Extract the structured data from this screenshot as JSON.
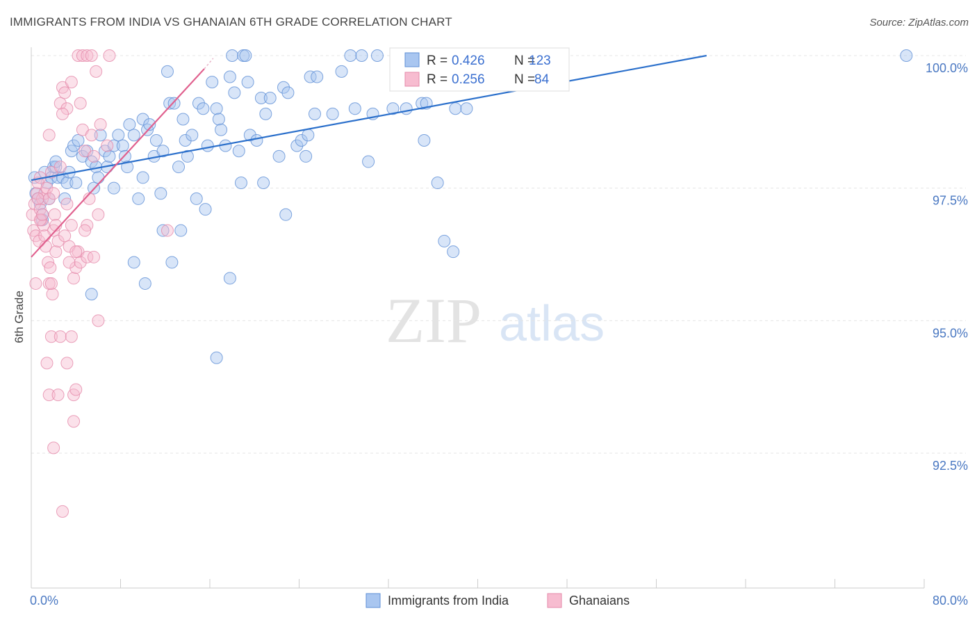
{
  "title": "IMMIGRANTS FROM INDIA VS GHANAIAN 6TH GRADE CORRELATION CHART",
  "source": "Source: ZipAtlas.com",
  "watermark": {
    "zip": "ZIP",
    "atlas": "atlas"
  },
  "colors": {
    "blue_fill": "#a9c6f0",
    "blue_stroke": "#5e8fd6",
    "blue_line": "#2a6fcb",
    "pink_fill": "#f7bcd0",
    "pink_stroke": "#e58aaa",
    "pink_line": "#e0608e",
    "grid": "#e4e4e4",
    "axis_label": "#4a78c2"
  },
  "legend": {
    "rows": [
      {
        "r_label": "R = ",
        "r_value": "0.426",
        "n_label": "N = ",
        "n_value": "123"
      },
      {
        "r_label": "R = ",
        "r_value": "0.256",
        "n_label": "N = ",
        "n_value": "84"
      }
    ]
  },
  "chart_data": {
    "type": "scatter",
    "title": "IMMIGRANTS FROM INDIA VS GHANAIAN 6TH GRADE CORRELATION CHART",
    "xlabel": "",
    "ylabel": "6th Grade",
    "xlim": [
      0,
      80
    ],
    "ylim": [
      90.3,
      100.25
    ],
    "x_tick_labels": [
      {
        "value": 0,
        "label": "0.0%"
      },
      {
        "value": 80,
        "label": "80.0%"
      }
    ],
    "y_tick_labels": [
      {
        "value": 100,
        "label": "100.0%"
      },
      {
        "value": 97.5,
        "label": "97.5%"
      },
      {
        "value": 95,
        "label": "95.0%"
      },
      {
        "value": 92.5,
        "label": "92.5%"
      }
    ],
    "series": [
      {
        "name": "Immigrants from India",
        "color_key": "blue",
        "trend": {
          "x": [
            0,
            60.5
          ],
          "y": [
            97.65,
            100.0
          ]
        },
        "points": [
          [
            0.3,
            97.7
          ],
          [
            0.4,
            97.4
          ],
          [
            0.6,
            97.3
          ],
          [
            0.8,
            97.2
          ],
          [
            1.0,
            96.9
          ],
          [
            1.2,
            97.8
          ],
          [
            1.4,
            97.6
          ],
          [
            1.6,
            97.3
          ],
          [
            1.8,
            97.7
          ],
          [
            2.0,
            97.9
          ],
          [
            2.2,
            97.9
          ],
          [
            2.4,
            97.7
          ],
          [
            2.8,
            97.7
          ],
          [
            3.2,
            97.6
          ],
          [
            3.4,
            97.8
          ],
          [
            3.6,
            98.2
          ],
          [
            3.8,
            98.3
          ],
          [
            4.2,
            98.4
          ],
          [
            4.6,
            98.1
          ],
          [
            5.0,
            98.2
          ],
          [
            5.4,
            98.0
          ],
          [
            5.6,
            97.5
          ],
          [
            5.8,
            97.9
          ],
          [
            6.2,
            98.5
          ],
          [
            6.6,
            98.2
          ],
          [
            6.8,
            97.9
          ],
          [
            7.0,
            98.1
          ],
          [
            7.4,
            98.3
          ],
          [
            7.8,
            98.5
          ],
          [
            8.2,
            98.3
          ],
          [
            8.4,
            98.1
          ],
          [
            8.6,
            97.9
          ],
          [
            8.8,
            98.7
          ],
          [
            9.2,
            98.5
          ],
          [
            9.6,
            97.3
          ],
          [
            10.0,
            97.7
          ],
          [
            10.0,
            98.8
          ],
          [
            10.4,
            98.6
          ],
          [
            10.6,
            98.7
          ],
          [
            11.0,
            98.1
          ],
          [
            11.2,
            98.4
          ],
          [
            11.6,
            97.4
          ],
          [
            11.8,
            98.2
          ],
          [
            12.2,
            99.7
          ],
          [
            12.4,
            99.1
          ],
          [
            12.8,
            99.1
          ],
          [
            13.2,
            97.9
          ],
          [
            13.6,
            98.8
          ],
          [
            13.8,
            98.4
          ],
          [
            14.0,
            98.1
          ],
          [
            14.4,
            98.5
          ],
          [
            15.0,
            99.1
          ],
          [
            15.4,
            99.0
          ],
          [
            15.8,
            98.3
          ],
          [
            16.2,
            99.5
          ],
          [
            16.6,
            99.0
          ],
          [
            16.8,
            98.8
          ],
          [
            17.0,
            98.6
          ],
          [
            17.4,
            98.3
          ],
          [
            17.8,
            99.6
          ],
          [
            18.0,
            100.0
          ],
          [
            18.2,
            99.3
          ],
          [
            18.6,
            98.2
          ],
          [
            18.8,
            97.6
          ],
          [
            19.0,
            100.0
          ],
          [
            19.2,
            100.0
          ],
          [
            19.4,
            99.5
          ],
          [
            19.6,
            98.5
          ],
          [
            20.2,
            98.4
          ],
          [
            20.6,
            99.2
          ],
          [
            20.8,
            97.6
          ],
          [
            21.0,
            98.9
          ],
          [
            21.4,
            99.2
          ],
          [
            22.2,
            98.1
          ],
          [
            22.6,
            99.4
          ],
          [
            22.8,
            97.0
          ],
          [
            23.0,
            99.3
          ],
          [
            23.8,
            98.3
          ],
          [
            24.2,
            98.4
          ],
          [
            24.6,
            98.1
          ],
          [
            24.8,
            98.5
          ],
          [
            25.0,
            99.6
          ],
          [
            25.4,
            98.9
          ],
          [
            25.6,
            99.6
          ],
          [
            27.0,
            98.9
          ],
          [
            27.8,
            99.7
          ],
          [
            28.6,
            100.0
          ],
          [
            29.0,
            99.0
          ],
          [
            29.6,
            100.0
          ],
          [
            30.2,
            98.0
          ],
          [
            30.6,
            98.9
          ],
          [
            31.0,
            100.0
          ],
          [
            32.4,
            99.0
          ],
          [
            33.4,
            100.0
          ],
          [
            33.6,
            99.0
          ],
          [
            34.6,
            100.0
          ],
          [
            35.0,
            99.1
          ],
          [
            35.4,
            99.1
          ],
          [
            36.0,
            100.0
          ],
          [
            35.2,
            98.4
          ],
          [
            36.4,
            97.6
          ],
          [
            37.0,
            96.5
          ],
          [
            37.8,
            96.3
          ],
          [
            38.0,
            99.0
          ],
          [
            7.4,
            97.5
          ],
          [
            9.2,
            96.1
          ],
          [
            10.2,
            95.7
          ],
          [
            11.8,
            96.7
          ],
          [
            12.6,
            96.1
          ],
          [
            13.4,
            96.7
          ],
          [
            14.8,
            97.3
          ],
          [
            15.6,
            97.1
          ],
          [
            16.6,
            94.3
          ],
          [
            17.8,
            95.8
          ],
          [
            5.4,
            95.5
          ],
          [
            3.0,
            97.3
          ],
          [
            4.0,
            97.6
          ],
          [
            1.0,
            97.0
          ],
          [
            2.2,
            98.0
          ],
          [
            6.0,
            97.7
          ],
          [
            38.4,
            100.0
          ],
          [
            39.0,
            99.0
          ],
          [
            78.4,
            100.0
          ]
        ]
      },
      {
        "name": "Ghanaians",
        "color_key": "pink",
        "trend": {
          "x": [
            0,
            15.5
          ],
          "y": [
            96.2,
            99.75
          ]
        },
        "points": [
          [
            0.1,
            97.0
          ],
          [
            0.2,
            96.7
          ],
          [
            0.3,
            97.2
          ],
          [
            0.4,
            96.6
          ],
          [
            0.5,
            97.4
          ],
          [
            0.6,
            97.6
          ],
          [
            0.7,
            96.5
          ],
          [
            0.8,
            97.1
          ],
          [
            0.9,
            96.9
          ],
          [
            1.0,
            97.3
          ],
          [
            1.1,
            96.8
          ],
          [
            1.2,
            97.4
          ],
          [
            1.3,
            96.4
          ],
          [
            1.4,
            97.5
          ],
          [
            1.5,
            96.1
          ],
          [
            1.6,
            95.7
          ],
          [
            1.7,
            96.0
          ],
          [
            1.8,
            97.8
          ],
          [
            1.9,
            95.5
          ],
          [
            2.0,
            96.7
          ],
          [
            2.1,
            97.0
          ],
          [
            2.2,
            96.3
          ],
          [
            2.4,
            96.5
          ],
          [
            2.6,
            99.1
          ],
          [
            2.8,
            99.4
          ],
          [
            3.0,
            99.3
          ],
          [
            3.2,
            99.0
          ],
          [
            3.4,
            96.4
          ],
          [
            3.6,
            96.8
          ],
          [
            3.8,
            95.8
          ],
          [
            4.0,
            96.0
          ],
          [
            4.2,
            96.3
          ],
          [
            4.4,
            99.1
          ],
          [
            4.6,
            98.6
          ],
          [
            4.8,
            98.2
          ],
          [
            5.0,
            96.8
          ],
          [
            5.2,
            97.3
          ],
          [
            5.4,
            98.5
          ],
          [
            5.6,
            98.1
          ],
          [
            5.8,
            99.7
          ],
          [
            6.0,
            97.0
          ],
          [
            6.2,
            98.7
          ],
          [
            4.2,
            100.0
          ],
          [
            4.6,
            100.0
          ],
          [
            5.0,
            100.0
          ],
          [
            5.4,
            100.0
          ],
          [
            7.0,
            100.0
          ],
          [
            1.8,
            94.7
          ],
          [
            2.6,
            94.7
          ],
          [
            3.6,
            94.7
          ],
          [
            1.4,
            94.2
          ],
          [
            3.2,
            94.2
          ],
          [
            1.6,
            93.6
          ],
          [
            2.4,
            93.6
          ],
          [
            3.8,
            93.6
          ],
          [
            4.0,
            93.7
          ],
          [
            3.8,
            93.1
          ],
          [
            2.0,
            92.6
          ],
          [
            2.8,
            91.4
          ],
          [
            0.6,
            97.3
          ],
          [
            0.8,
            96.9
          ],
          [
            1.0,
            97.0
          ],
          [
            1.6,
            97.3
          ],
          [
            2.0,
            97.4
          ],
          [
            2.6,
            97.9
          ],
          [
            3.0,
            96.6
          ],
          [
            3.4,
            96.1
          ],
          [
            4.0,
            96.3
          ],
          [
            4.4,
            96.1
          ],
          [
            5.0,
            96.2
          ],
          [
            5.6,
            96.2
          ],
          [
            6.0,
            95.0
          ],
          [
            0.4,
            95.7
          ],
          [
            1.8,
            95.7
          ],
          [
            3.2,
            97.2
          ],
          [
            4.8,
            96.7
          ],
          [
            2.2,
            96.8
          ],
          [
            1.2,
            96.6
          ],
          [
            0.8,
            97.7
          ],
          [
            3.6,
            99.5
          ],
          [
            2.8,
            98.9
          ],
          [
            1.6,
            98.5
          ],
          [
            6.8,
            98.3
          ],
          [
            12.2,
            96.7
          ]
        ]
      }
    ],
    "legend_entries": [
      "Immigrants from India",
      "Ghanaians"
    ]
  }
}
